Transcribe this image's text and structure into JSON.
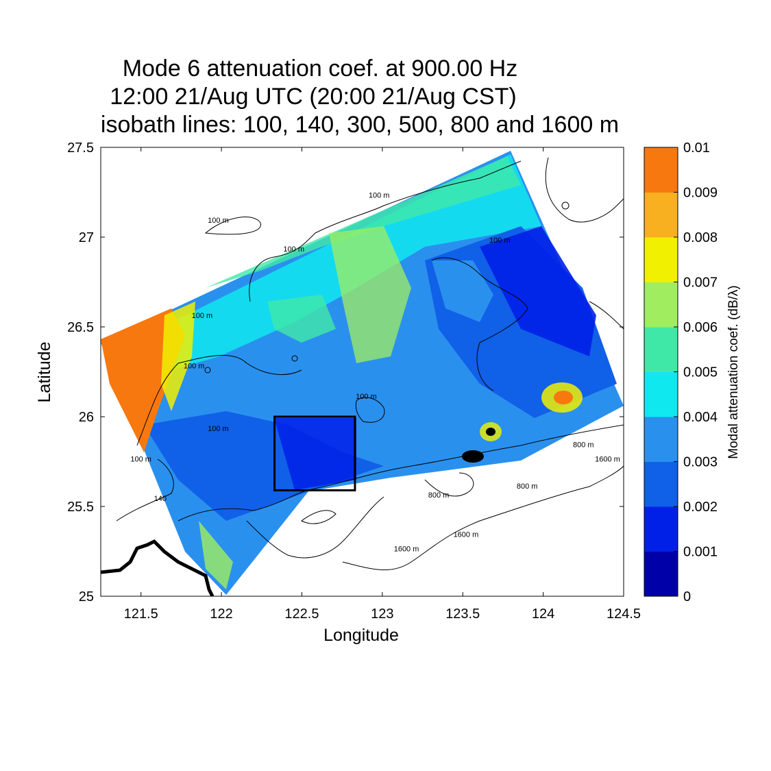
{
  "title": {
    "line1": "Mode 6 attenuation coef. at 900.00 Hz",
    "line2": "12:00 21/Aug UTC (20:00 21/Aug CST)",
    "line3": "isobath lines: 100, 140, 300, 500, 800 and 1600 m"
  },
  "axes": {
    "xlabel": "Longitude",
    "ylabel": "Latitude",
    "xlim": [
      121.25,
      124.5
    ],
    "ylim": [
      25,
      27.5
    ],
    "xticks": [
      "121.5",
      "122",
      "122.5",
      "123",
      "123.5",
      "124",
      "124.5"
    ],
    "yticks": [
      "25",
      "25.5",
      "26",
      "26.5",
      "27",
      "27.5"
    ]
  },
  "colorbar": {
    "label": "Modal attenuation coef. (dB/λ)",
    "ticks": [
      "0",
      "0.001",
      "0.002",
      "0.003",
      "0.004",
      "0.005",
      "0.006",
      "0.007",
      "0.008",
      "0.009",
      "0.01"
    ],
    "colors": [
      "#0000a8",
      "#0020e8",
      "#1060e8",
      "#2a90ee",
      "#10e8f0",
      "#40e8a8",
      "#a0ee60",
      "#f0f000",
      "#f8b020",
      "#f87810"
    ]
  },
  "contour_labels": [
    {
      "text": "100 m",
      "lon": 121.98,
      "lat": 27.08
    },
    {
      "text": "100 m",
      "lon": 122.45,
      "lat": 26.92
    },
    {
      "text": "100 m",
      "lon": 122.98,
      "lat": 27.22
    },
    {
      "text": "100 m",
      "lon": 121.88,
      "lat": 26.55
    },
    {
      "text": "100 m",
      "lon": 121.83,
      "lat": 26.27
    },
    {
      "text": "100 m",
      "lon": 121.98,
      "lat": 25.92
    },
    {
      "text": "100 m",
      "lon": 123.73,
      "lat": 26.97
    },
    {
      "text": "100 m",
      "lon": 122.9,
      "lat": 26.1
    },
    {
      "text": "100 m",
      "lon": 121.5,
      "lat": 25.75
    },
    {
      "text": "140",
      "lon": 121.62,
      "lat": 25.53
    },
    {
      "text": "800 m",
      "lon": 123.35,
      "lat": 25.55
    },
    {
      "text": "800 m",
      "lon": 123.9,
      "lat": 25.6
    },
    {
      "text": "800 m",
      "lon": 124.25,
      "lat": 25.83
    },
    {
      "text": "1600 m",
      "lon": 123.52,
      "lat": 25.33
    },
    {
      "text": "1600 m",
      "lon": 123.15,
      "lat": 25.25
    },
    {
      "text": "1600 m",
      "lon": 124.4,
      "lat": 25.75
    }
  ],
  "selection_box": {
    "lon": [
      122.33,
      122.83
    ],
    "lat": [
      25.59,
      26.0
    ]
  }
}
